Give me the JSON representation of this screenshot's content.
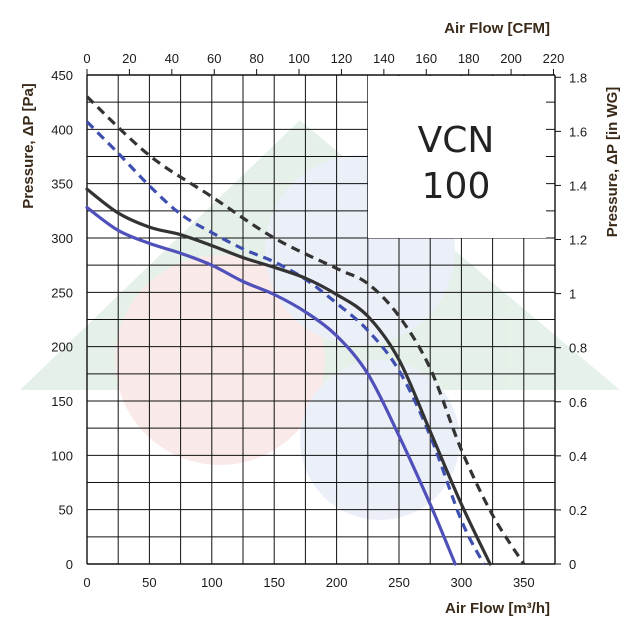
{
  "chart_data": {
    "type": "line",
    "model_label": [
      "VCN",
      "100"
    ],
    "x_label_bottom": "Air Flow [m³/h]",
    "x_label_top": "Air Flow [CFM]",
    "y_label_left": "Pressure, ΔP [Pa]",
    "y_label_right": "Pressure, ΔP [in WG]",
    "x_ticks_bottom": [
      "0",
      "50",
      "100",
      "150",
      "200",
      "250",
      "300",
      "350"
    ],
    "x_ticks_top": [
      "0",
      "20",
      "40",
      "60",
      "80",
      "100",
      "120",
      "140",
      "160",
      "180",
      "200",
      "220"
    ],
    "y_ticks_left": [
      "0",
      "50",
      "100",
      "150",
      "200",
      "250",
      "300",
      "350",
      "400",
      "450"
    ],
    "y_ticks_right": [
      "0",
      "0.2",
      "0.4",
      "0.6",
      "0.8",
      "1",
      "1.2",
      "1.4",
      "1.6",
      "1.8"
    ],
    "xlim": [
      0,
      375
    ],
    "ylim": [
      0,
      450
    ],
    "grid": true,
    "series": [
      {
        "color": "#333333",
        "dashed": true,
        "points": [
          [
            0,
            430
          ],
          [
            50,
            376
          ],
          [
            100,
            338
          ],
          [
            150,
            300
          ],
          [
            200,
            272
          ],
          [
            225,
            258
          ],
          [
            250,
            228
          ],
          [
            275,
            180
          ],
          [
            300,
            105
          ],
          [
            325,
            45
          ],
          [
            350,
            0
          ]
        ]
      },
      {
        "color": "#3f4fb0",
        "dashed": true,
        "points": [
          [
            0,
            407
          ],
          [
            25,
            378
          ],
          [
            50,
            348
          ],
          [
            75,
            322
          ],
          [
            100,
            305
          ],
          [
            125,
            290
          ],
          [
            150,
            278
          ],
          [
            175,
            262
          ],
          [
            200,
            240
          ],
          [
            225,
            215
          ],
          [
            250,
            178
          ],
          [
            275,
            118
          ],
          [
            300,
            40
          ],
          [
            318,
            0
          ]
        ]
      },
      {
        "color": "#333333",
        "dashed": false,
        "points": [
          [
            0,
            345
          ],
          [
            25,
            323
          ],
          [
            50,
            310
          ],
          [
            75,
            303
          ],
          [
            100,
            293
          ],
          [
            125,
            282
          ],
          [
            150,
            273
          ],
          [
            175,
            263
          ],
          [
            200,
            248
          ],
          [
            225,
            228
          ],
          [
            250,
            188
          ],
          [
            275,
            122
          ],
          [
            300,
            55
          ],
          [
            323,
            0
          ]
        ]
      },
      {
        "color": "#5050bb",
        "dashed": false,
        "points": [
          [
            0,
            328
          ],
          [
            25,
            307
          ],
          [
            50,
            295
          ],
          [
            75,
            286
          ],
          [
            100,
            275
          ],
          [
            125,
            260
          ],
          [
            150,
            248
          ],
          [
            175,
            232
          ],
          [
            200,
            210
          ],
          [
            225,
            175
          ],
          [
            250,
            118
          ],
          [
            275,
            55
          ],
          [
            295,
            0
          ]
        ]
      }
    ],
    "colors": {
      "grid": "#111111",
      "watermark_green": "#8cc49a",
      "watermark_red": "#e8a0a0",
      "watermark_blue": "#a8b8e0"
    }
  }
}
